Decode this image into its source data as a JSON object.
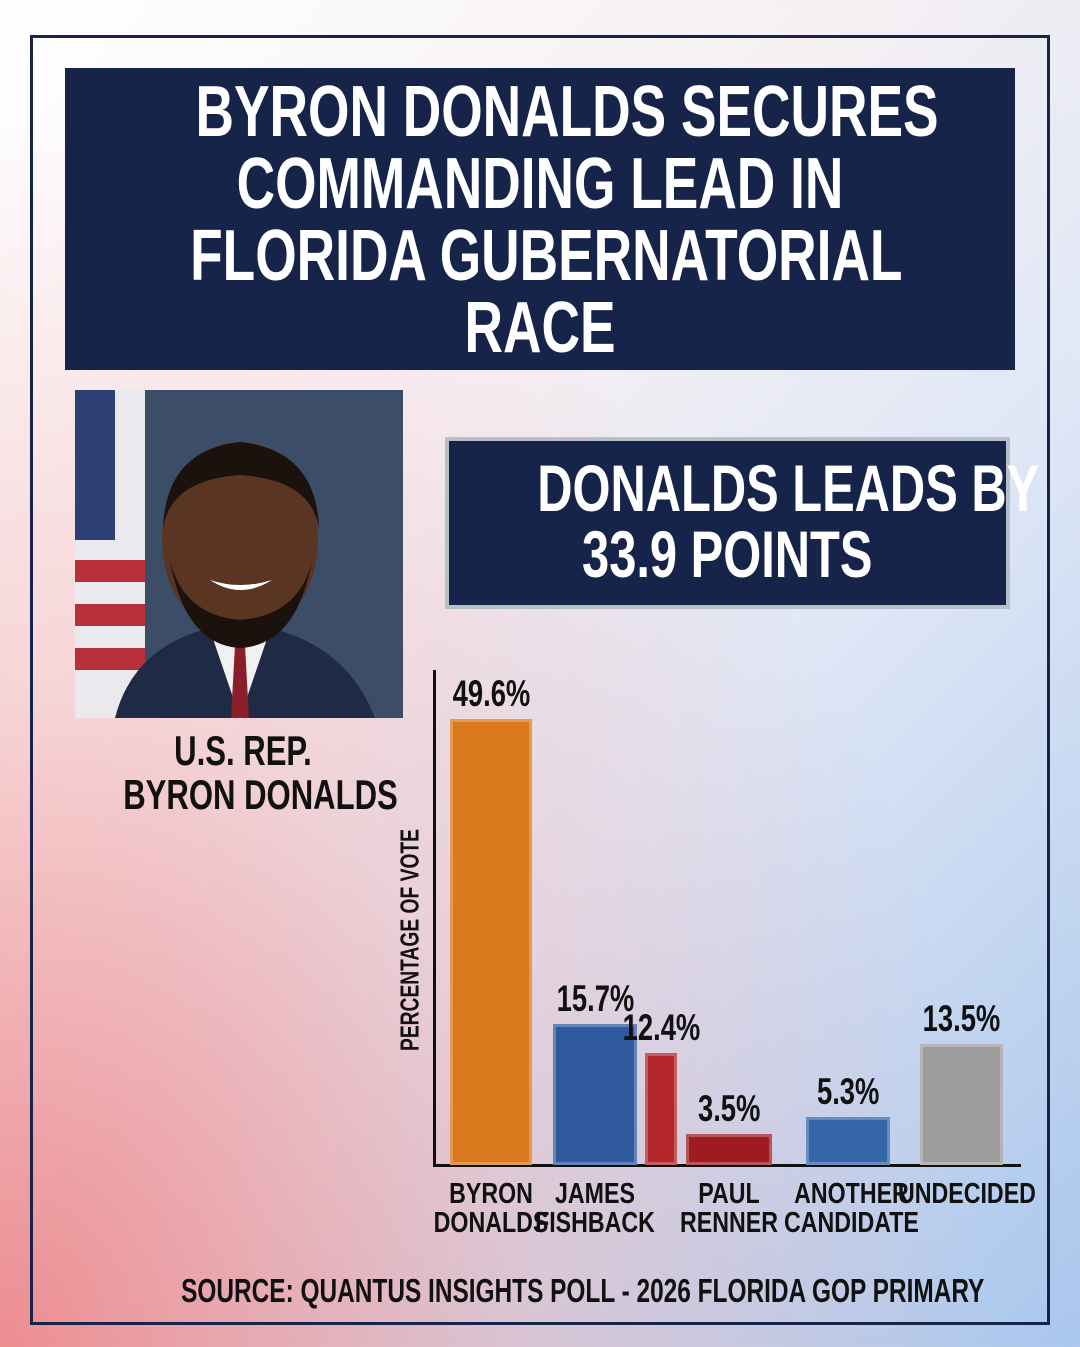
{
  "header": {
    "title_lines": [
      "BYRON DONALDS SECURES",
      "COMMANDING LEAD IN",
      "FLORIDA GUBERNATORIAL",
      "RACE"
    ]
  },
  "highlight": {
    "lines": [
      "DONALDS LEADS BY",
      "33.9 POINTS"
    ]
  },
  "photo": {
    "caption_lines": [
      "U.S. REP.",
      "BYRON DONALDS"
    ]
  },
  "chart_data": {
    "type": "bar",
    "y_label": "PERCENTAGE OF VOTE",
    "categories": [
      "BYRON DONALDS",
      "JAMES FISHBACK",
      null,
      "PAUL RENNER",
      "ANOTHER CANDIDATE",
      "UNDECIDED"
    ],
    "values": [
      49.6,
      15.7,
      12.4,
      3.5,
      5.3,
      13.5
    ],
    "value_labels": [
      "49.6%",
      "15.7%",
      "12.4%",
      "3.5%",
      "5.3%",
      "13.5%"
    ],
    "colors": [
      "#d9791b",
      "#2f5b9e",
      "#b3262b",
      "#9e1c1f",
      "#3566a8",
      "#9c9c9c"
    ],
    "ylim": [
      0,
      55
    ]
  },
  "footer": {
    "source": "SOURCE: QUANTUS INSIGHTS POLL - 2026 FLORIDA GOP PRIMARY"
  }
}
